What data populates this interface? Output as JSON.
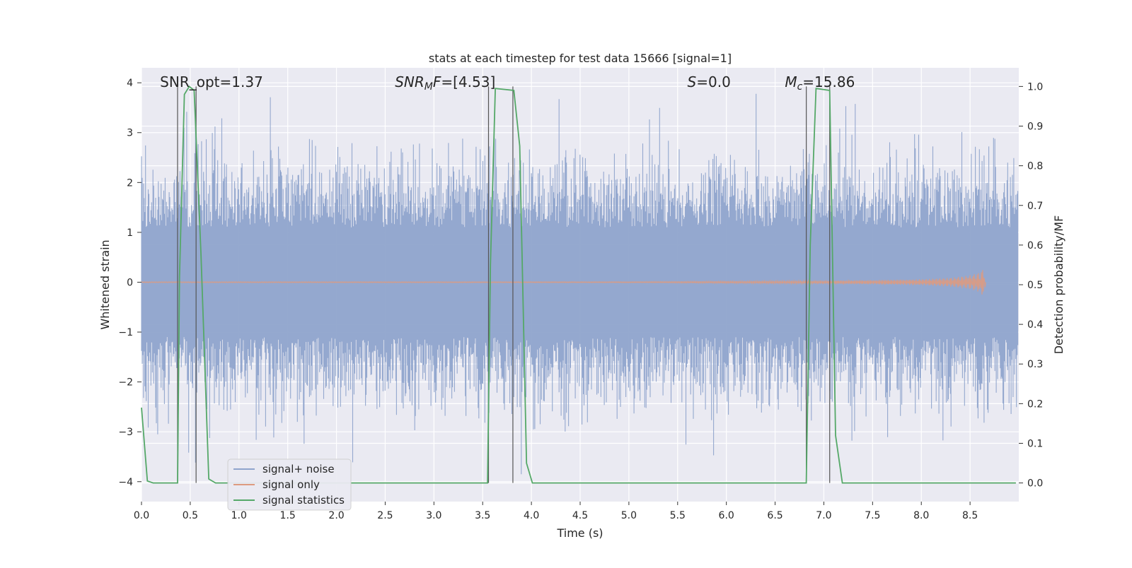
{
  "chart_data": {
    "type": "line",
    "title": "stats at each timestep for test data 15666 [signal=1]",
    "xlabel": "Time (s)",
    "ylabel_left": "Whitened strain",
    "ylabel_right": "Detection probability/MF",
    "xlim": [
      0.0,
      9.0
    ],
    "ylim_left": [
      -4.4,
      4.3
    ],
    "ylim_right": [
      -0.047,
      1.047
    ],
    "grid": true,
    "legend_position": "lower-left",
    "x_ticks": [
      0.0,
      0.5,
      1.0,
      1.5,
      2.0,
      2.5,
      3.0,
      3.5,
      4.0,
      4.5,
      5.0,
      5.5,
      6.0,
      6.5,
      7.0,
      7.5,
      8.0,
      8.5
    ],
    "x_tick_labels": [
      "0.0",
      "0.5",
      "1.0",
      "1.5",
      "2.0",
      "2.5",
      "3.0",
      "3.5",
      "4.0",
      "4.5",
      "5.0",
      "5.5",
      "6.0",
      "6.5",
      "7.0",
      "7.5",
      "8.0",
      "8.5"
    ],
    "y_left_ticks": [
      4,
      3,
      2,
      1,
      0,
      -1,
      -2,
      -3,
      -4
    ],
    "y_left_tick_labels": [
      "4",
      "3",
      "2",
      "1",
      "0",
      "−1",
      "−2",
      "−3",
      "−4"
    ],
    "y_right_ticks": [
      1.0,
      0.9,
      0.8,
      0.7,
      0.6,
      0.5,
      0.4,
      0.3,
      0.2,
      0.1,
      0.0
    ],
    "y_right_tick_labels": [
      "1.0",
      "0.9",
      "0.8",
      "0.7",
      "0.6",
      "0.5",
      "0.4",
      "0.3",
      "0.2",
      "0.1",
      "0.0"
    ],
    "annotations": [
      {
        "text": "SNR_opt=1.37",
        "x": 0.19
      },
      {
        "text": "SNR_MF=[4.53]",
        "x": 2.6
      },
      {
        "text": "S=0.0",
        "x": 5.6
      },
      {
        "text": "M_c=15.86",
        "x": 6.6
      }
    ],
    "series": [
      {
        "name": "signal+ noise",
        "color": "#8fa4cc",
        "axis": "left",
        "description": "noise envelope approx |y| up to ~2-3.5, t in [0, 9]"
      },
      {
        "name": "signal only",
        "color": "#dd9a80",
        "axis": "left",
        "x": [
          0.0,
          5.0,
          6.0,
          7.0,
          7.5,
          8.0,
          8.3,
          8.5,
          8.6,
          8.65,
          8.66
        ],
        "amplitude": [
          0.01,
          0.01,
          0.02,
          0.03,
          0.04,
          0.06,
          0.09,
          0.14,
          0.2,
          0.3,
          0.0
        ]
      },
      {
        "name": "signal statistics",
        "color": "#55a868",
        "axis": "right",
        "x": [
          0.0,
          0.06,
          0.12,
          0.37,
          0.39,
          0.44,
          0.49,
          0.54,
          0.61,
          0.69,
          0.76,
          3.55,
          3.58,
          3.63,
          3.82,
          3.88,
          3.95,
          4.01,
          6.82,
          6.86,
          6.92,
          7.06,
          7.12,
          7.19,
          8.97
        ],
        "y": [
          0.19,
          0.005,
          0.0,
          0.0,
          0.52,
          0.98,
          1.0,
          0.99,
          0.58,
          0.01,
          0.0,
          0.0,
          0.55,
          0.995,
          0.99,
          0.85,
          0.05,
          0.0,
          0.0,
          0.6,
          0.995,
          0.99,
          0.12,
          0.0,
          0.0
        ]
      }
    ],
    "vertical_markers": [
      0.37,
      0.56,
      3.56,
      3.81,
      6.82,
      7.06
    ],
    "marker_color": "#555555",
    "legend": [
      "signal+ noise",
      "signal only",
      "signal statistics"
    ]
  }
}
